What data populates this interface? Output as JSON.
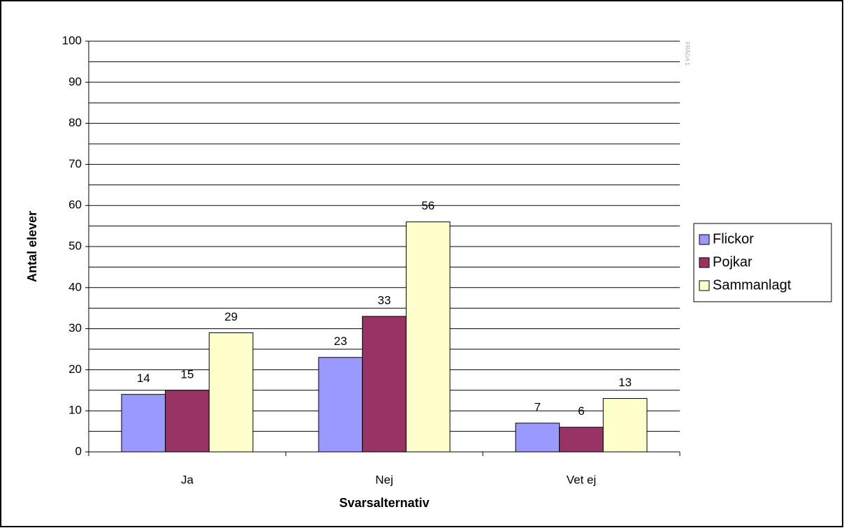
{
  "chart_data": {
    "type": "bar",
    "categories": [
      "Ja",
      "Nej",
      "Vet ej"
    ],
    "series": [
      {
        "name": "Flickor",
        "color": "#9999ff",
        "values": [
          14,
          23,
          7
        ]
      },
      {
        "name": "Pojkar",
        "color": "#993366",
        "values": [
          15,
          33,
          6
        ]
      },
      {
        "name": "Sammanlagt",
        "color": "#ffffcc",
        "values": [
          29,
          56,
          13
        ]
      }
    ],
    "ylim": [
      0,
      100
    ],
    "yticks": [
      0,
      10,
      20,
      30,
      40,
      50,
      60,
      70,
      80,
      90,
      100
    ],
    "minor_gridlines": [
      5,
      15,
      25,
      35,
      45,
      55,
      65,
      75,
      85,
      95
    ],
    "grid": true,
    "xlabel": "Svarsalternativ",
    "ylabel": "Antal elever",
    "annotation": "FRÅGA 1",
    "legend": "right"
  }
}
